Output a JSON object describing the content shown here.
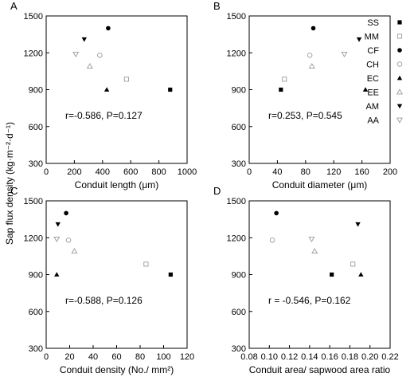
{
  "figure": {
    "ylabel": "Sap flux density (kg·m⁻²·d⁻¹)"
  },
  "legend": [
    {
      "code": "SS",
      "marker": "square",
      "filled": true,
      "color": "#000000"
    },
    {
      "code": "MM",
      "marker": "square",
      "filled": false,
      "color": "#9a9a9a"
    },
    {
      "code": "CF",
      "marker": "circle",
      "filled": true,
      "color": "#000000"
    },
    {
      "code": "CH",
      "marker": "circle",
      "filled": false,
      "color": "#9a9a9a"
    },
    {
      "code": "EC",
      "marker": "triangle-up",
      "filled": true,
      "color": "#000000"
    },
    {
      "code": "EE",
      "marker": "triangle-up",
      "filled": false,
      "color": "#9a9a9a"
    },
    {
      "code": "AM",
      "marker": "triangle-down",
      "filled": true,
      "color": "#000000"
    },
    {
      "code": "AA",
      "marker": "triangle-down",
      "filled": false,
      "color": "#9a9a9a"
    }
  ],
  "chart_data": [
    {
      "type": "scatter",
      "panel": "A",
      "xlabel": "Conduit length (μm)",
      "ylabel": "",
      "xlim": [
        0,
        1000
      ],
      "ylim": [
        300,
        1500
      ],
      "xticks": [
        "0",
        "200",
        "400",
        "600",
        "800",
        "1000"
      ],
      "yticks": [
        "300",
        "600",
        "900",
        "1200",
        "1500"
      ],
      "stat": "r=-0.586, P=0.127",
      "points": [
        {
          "species": "SS",
          "x": 880,
          "y": 900
        },
        {
          "species": "MM",
          "x": 570,
          "y": 985
        },
        {
          "species": "CF",
          "x": 440,
          "y": 1400
        },
        {
          "species": "CH",
          "x": 380,
          "y": 1180
        },
        {
          "species": "EC",
          "x": 430,
          "y": 900
        },
        {
          "species": "EE",
          "x": 310,
          "y": 1090
        },
        {
          "species": "AM",
          "x": 270,
          "y": 1310
        },
        {
          "species": "AA",
          "x": 210,
          "y": 1190
        }
      ]
    },
    {
      "type": "scatter",
      "panel": "B",
      "xlabel": "Conduit diameter (μm)",
      "ylabel": "",
      "xlim": [
        0,
        200
      ],
      "ylim": [
        300,
        1500
      ],
      "xticks": [
        "0",
        "40",
        "80",
        "120",
        "160",
        "200"
      ],
      "yticks": [
        "300",
        "600",
        "900",
        "1200",
        "1500"
      ],
      "stat": "r=0.253, P=0.545",
      "points": [
        {
          "species": "SS",
          "x": 45,
          "y": 900
        },
        {
          "species": "MM",
          "x": 50,
          "y": 985
        },
        {
          "species": "CF",
          "x": 91,
          "y": 1400
        },
        {
          "species": "CH",
          "x": 86,
          "y": 1180
        },
        {
          "species": "EC",
          "x": 165,
          "y": 900
        },
        {
          "species": "EE",
          "x": 89,
          "y": 1090
        },
        {
          "species": "AM",
          "x": 156,
          "y": 1310
        },
        {
          "species": "AA",
          "x": 135,
          "y": 1190
        }
      ]
    },
    {
      "type": "scatter",
      "panel": "C",
      "xlabel": "Conduit density (No./ mm²)",
      "ylabel": "",
      "xlim": [
        0,
        120
      ],
      "ylim": [
        300,
        1500
      ],
      "xticks": [
        "0",
        "20",
        "40",
        "60",
        "80",
        "100",
        "120"
      ],
      "yticks": [
        "300",
        "600",
        "900",
        "1200",
        "1500"
      ],
      "stat": "r=-0.588, P=0.126",
      "points": [
        {
          "species": "SS",
          "x": 106,
          "y": 900
        },
        {
          "species": "MM",
          "x": 85,
          "y": 985
        },
        {
          "species": "CF",
          "x": 17,
          "y": 1400
        },
        {
          "species": "CH",
          "x": 19,
          "y": 1180
        },
        {
          "species": "EC",
          "x": 9,
          "y": 900
        },
        {
          "species": "EE",
          "x": 24,
          "y": 1090
        },
        {
          "species": "AM",
          "x": 10,
          "y": 1310
        },
        {
          "species": "AA",
          "x": 9,
          "y": 1190
        }
      ]
    },
    {
      "type": "scatter",
      "panel": "D",
      "xlabel": "Conduit area/ sapwood area ratio",
      "ylabel": "",
      "xlim": [
        0.08,
        0.22
      ],
      "ylim": [
        300,
        1500
      ],
      "xticks": [
        "0.08",
        "0.10",
        "0.12",
        "0.14",
        "0.16",
        "0.18",
        "0.20",
        "0.22"
      ],
      "yticks": [
        "300",
        "600",
        "900",
        "1200",
        "1500"
      ],
      "stat": "r = -0.546, P=0.162",
      "points": [
        {
          "species": "SS",
          "x": 0.162,
          "y": 900
        },
        {
          "species": "MM",
          "x": 0.183,
          "y": 985
        },
        {
          "species": "CF",
          "x": 0.107,
          "y": 1400
        },
        {
          "species": "CH",
          "x": 0.103,
          "y": 1180
        },
        {
          "species": "EC",
          "x": 0.191,
          "y": 900
        },
        {
          "species": "EE",
          "x": 0.145,
          "y": 1090
        },
        {
          "species": "AM",
          "x": 0.188,
          "y": 1310
        },
        {
          "species": "AA",
          "x": 0.142,
          "y": 1190
        }
      ]
    }
  ]
}
